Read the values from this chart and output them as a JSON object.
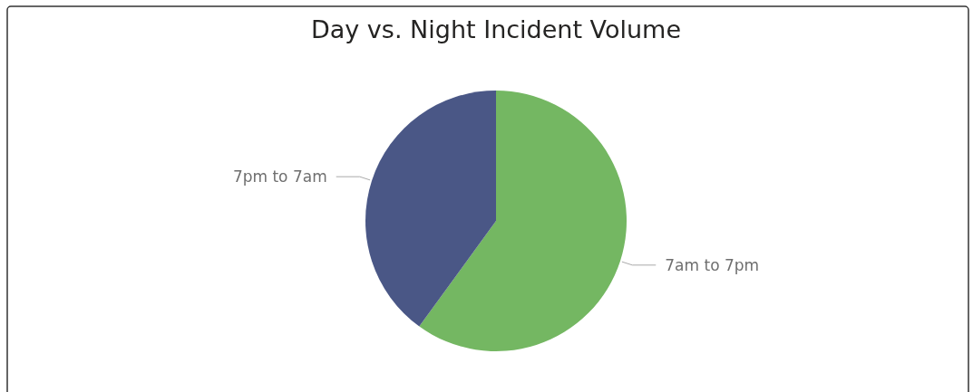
{
  "chart_data": {
    "type": "pie",
    "title": "Day vs. Night Incident Volume",
    "categories": [
      "7am to 7pm",
      "7pm to 7am"
    ],
    "values": [
      60,
      40
    ],
    "colors": [
      "#74b762",
      "#4a5786"
    ]
  }
}
